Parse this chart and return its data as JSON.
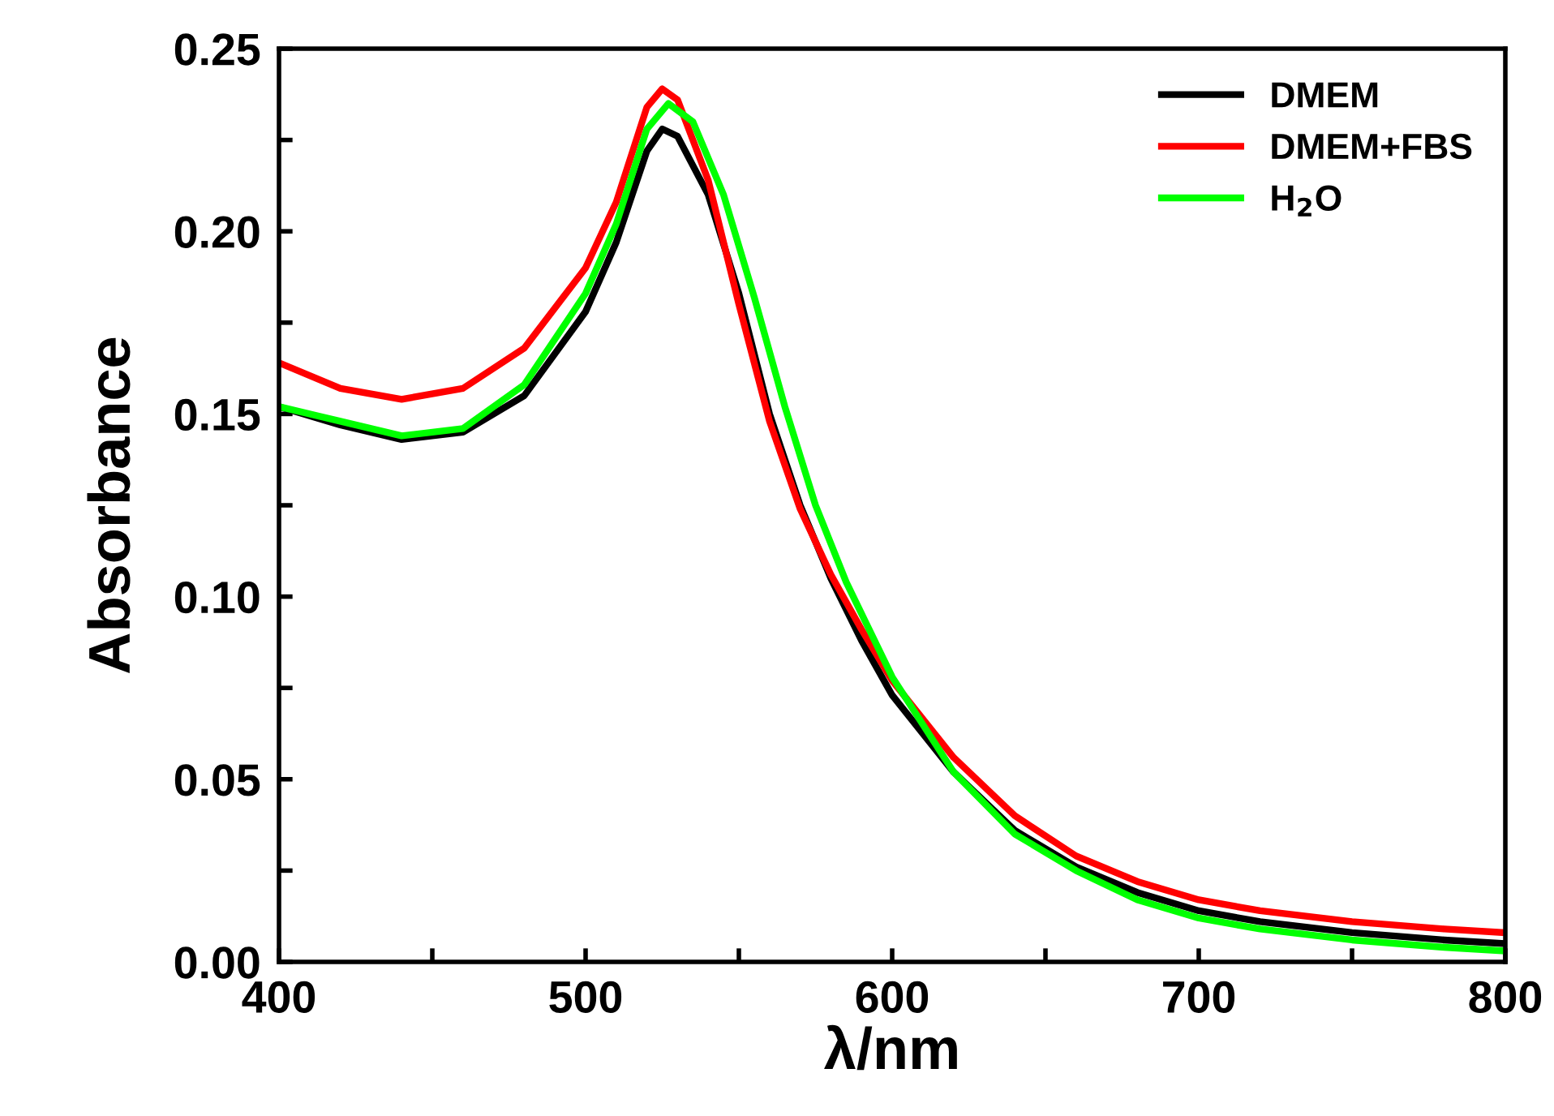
{
  "chart_data": {
    "type": "line",
    "xlabel": "λ/nm",
    "ylabel": "Absorbance",
    "xlim": [
      400,
      800
    ],
    "ylim": [
      0,
      0.25
    ],
    "xticks": [
      400,
      {
        "value": 450,
        "label": null
      },
      500,
      {
        "value": 550,
        "label": null
      },
      600,
      {
        "value": 650,
        "label": null
      },
      700,
      {
        "value": 750,
        "label": null
      },
      800
    ],
    "yticks": [
      "0.00",
      {
        "value": 0.025,
        "label": null
      },
      {
        "value": 0.05,
        "label": "0.05"
      },
      {
        "value": 0.075,
        "label": null
      },
      {
        "value": 0.1,
        "label": "0.10"
      },
      {
        "value": 0.125,
        "label": null
      },
      {
        "value": 0.15,
        "label": "0.15"
      },
      {
        "value": 0.175,
        "label": null
      },
      {
        "value": 0.2,
        "label": "0.20"
      },
      {
        "value": 0.225,
        "label": null
      },
      {
        "value": 0.25,
        "label": "0.25"
      }
    ],
    "legend": "top right",
    "grid": false,
    "marker": "none",
    "line_style": "solid",
    "series": [
      {
        "name": "DMEM",
        "color": "#000000",
        "x": [
          400,
          420,
          440,
          460,
          480,
          500,
          510,
          520,
          525,
          530,
          540,
          550,
          560,
          570,
          580,
          590,
          600,
          620,
          640,
          660,
          680,
          700,
          720,
          750,
          780,
          800
        ],
        "values": [
          0.152,
          0.147,
          0.143,
          0.145,
          0.155,
          0.178,
          0.197,
          0.222,
          0.228,
          0.226,
          0.21,
          0.183,
          0.15,
          0.125,
          0.105,
          0.088,
          0.073,
          0.052,
          0.036,
          0.026,
          0.019,
          0.014,
          0.011,
          0.008,
          0.006,
          0.005
        ]
      },
      {
        "name": "DMEM+FBS",
        "color": "#ff0000",
        "x": [
          400,
          420,
          440,
          460,
          480,
          500,
          510,
          520,
          525,
          530,
          540,
          550,
          560,
          570,
          580,
          590,
          600,
          620,
          640,
          660,
          680,
          700,
          720,
          750,
          780,
          800
        ],
        "values": [
          0.164,
          0.157,
          0.154,
          0.157,
          0.168,
          0.19,
          0.208,
          0.234,
          0.239,
          0.236,
          0.214,
          0.18,
          0.148,
          0.124,
          0.106,
          0.091,
          0.077,
          0.056,
          0.04,
          0.029,
          0.022,
          0.017,
          0.014,
          0.011,
          0.009,
          0.008
        ]
      },
      {
        "name": "H$_{2}$O",
        "color": "#00ff00",
        "x": [
          400,
          420,
          440,
          460,
          480,
          500,
          510,
          520,
          527,
          535,
          545,
          555,
          565,
          575,
          585,
          600,
          620,
          640,
          660,
          680,
          700,
          720,
          750,
          780,
          800
        ],
        "values": [
          0.152,
          0.148,
          0.144,
          0.146,
          0.158,
          0.183,
          0.202,
          0.228,
          0.235,
          0.23,
          0.21,
          0.182,
          0.152,
          0.125,
          0.104,
          0.078,
          0.052,
          0.035,
          0.025,
          0.017,
          0.012,
          0.009,
          0.006,
          0.004,
          0.003
        ]
      }
    ]
  }
}
